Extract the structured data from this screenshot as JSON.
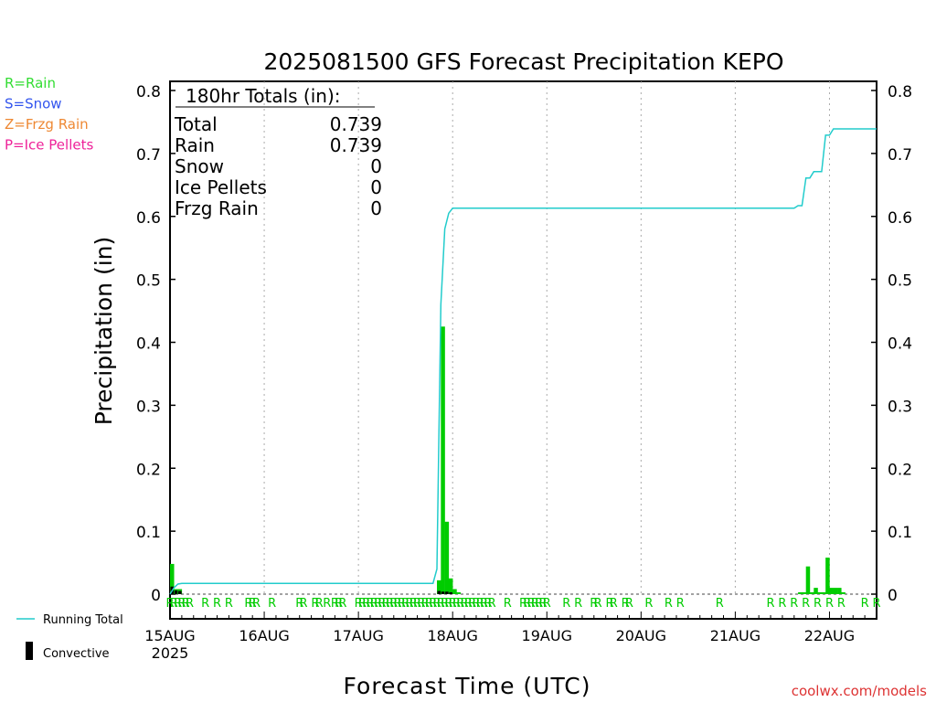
{
  "chart_data": {
    "type": "bar",
    "title": "2025081500 GFS Forecast Precipitation KEPO",
    "ylabel": "Precipitation (in)",
    "xlabel": "Forecast Time (UTC)",
    "ylim": [
      0,
      0.82
    ],
    "yticks": [
      0,
      0.1,
      0.2,
      0.3,
      0.4,
      0.5,
      0.6,
      0.7,
      0.8
    ],
    "ytick_labels": [
      "0",
      "0.1",
      "0.2",
      "0.3",
      "0.4",
      "0.5",
      "0.6",
      "0.7",
      "0.8"
    ],
    "x_hours_range": [
      0,
      180
    ],
    "x_ticks": [
      {
        "label": "15AUG",
        "hour": 0
      },
      {
        "label": "16AUG",
        "hour": 24
      },
      {
        "label": "17AUG",
        "hour": 48
      },
      {
        "label": "18AUG",
        "hour": 72
      },
      {
        "label": "19AUG",
        "hour": 96
      },
      {
        "label": "20AUG",
        "hour": 120
      },
      {
        "label": "21AUG",
        "hour": 144
      },
      {
        "label": "22AUG",
        "hour": 168
      }
    ],
    "year_label": "2025",
    "legend_types": [
      {
        "text": "R=Rain",
        "color": "#33dd33"
      },
      {
        "text": "S=Snow",
        "color": "#3355ee"
      },
      {
        "text": "Z=Frzg Rain",
        "color": "#ee8833"
      },
      {
        "text": "P=Ice Pellets",
        "color": "#ee2299"
      }
    ],
    "legend_bottom": [
      {
        "text": "Running Total",
        "color": "#22cccc",
        "kind": "line"
      },
      {
        "text": "Convective",
        "color": "#000000",
        "kind": "bar"
      }
    ],
    "totals_box": {
      "heading": "180hr Totals (in):",
      "rows": [
        {
          "label": "Total",
          "value": "0.739"
        },
        {
          "label": "Rain",
          "value": "0.739"
        },
        {
          "label": "Snow",
          "value": "0"
        },
        {
          "label": "Ice Pellets",
          "value": "0"
        },
        {
          "label": "Frzg Rain",
          "value": "0"
        }
      ]
    },
    "colors": {
      "rain_bar": "#00cc00",
      "convective": "#000000",
      "running_total": "#22cccc",
      "grid": "#aaaaaa"
    },
    "series": [
      {
        "name": "Rain",
        "kind": "bar",
        "x_hours": [
          0,
          1,
          2,
          68,
          69,
          70,
          71,
          72,
          73,
          160,
          161,
          162,
          163,
          164,
          165,
          166,
          167,
          168,
          169,
          170,
          171
        ],
        "values": [
          0.048,
          0.008,
          0.008,
          0.022,
          0.425,
          0.115,
          0.025,
          0.008,
          0.003,
          0.003,
          0.003,
          0.044,
          0.003,
          0.01,
          0.003,
          0.003,
          0.058,
          0.01,
          0.01,
          0.01,
          0.003
        ]
      },
      {
        "name": "Convective",
        "kind": "bar",
        "x_hours": [
          0,
          1,
          2,
          68,
          69,
          70,
          71
        ],
        "values": [
          0.012,
          0.006,
          0.005,
          0.005,
          0.004,
          0.004,
          0.003
        ]
      },
      {
        "name": "Running Total",
        "kind": "line",
        "x_hours": [
          0,
          1,
          2,
          3,
          67,
          68,
          69,
          70,
          71,
          72,
          159,
          160,
          161,
          162,
          163,
          164,
          165,
          166,
          167,
          168,
          169,
          170,
          171,
          180
        ],
        "values": [
          0.0,
          0.01,
          0.016,
          0.017,
          0.017,
          0.04,
          0.46,
          0.58,
          0.605,
          0.613,
          0.613,
          0.617,
          0.617,
          0.661,
          0.661,
          0.671,
          0.671,
          0.671,
          0.729,
          0.729,
          0.739,
          0.739,
          0.739,
          0.739
        ]
      }
    ],
    "ptype_markers": {
      "letter": "R",
      "hours": [
        0,
        1,
        2,
        3,
        4,
        5,
        9,
        12,
        15,
        20,
        21,
        22,
        26,
        33,
        34,
        37,
        38,
        40,
        42,
        43,
        44,
        48,
        49,
        50,
        51,
        52,
        53,
        54,
        55,
        56,
        57,
        58,
        59,
        60,
        61,
        62,
        63,
        64,
        65,
        66,
        67,
        68,
        69,
        70,
        71,
        72,
        73,
        74,
        75,
        76,
        77,
        78,
        79,
        80,
        81,
        82,
        86,
        90,
        91,
        92,
        93,
        94,
        95,
        96,
        101,
        104,
        108,
        109,
        112,
        113,
        116,
        117,
        122,
        127,
        130,
        140,
        153,
        156,
        159,
        162,
        165,
        168,
        171,
        177,
        180
      ]
    },
    "credit": "coolwx.com/models"
  }
}
